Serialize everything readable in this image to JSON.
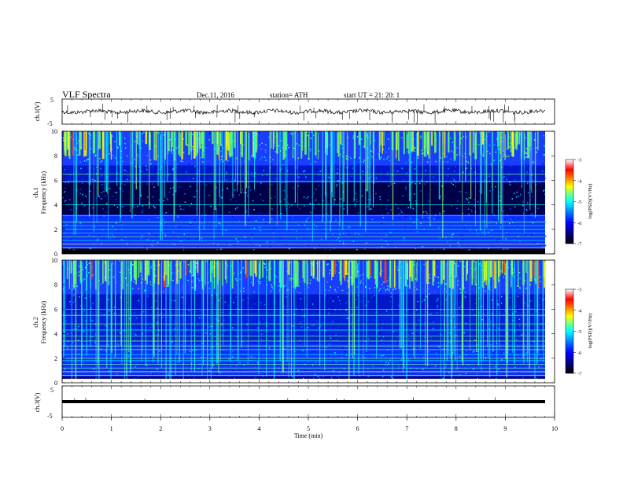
{
  "header": {
    "title": "VLF  Spectra",
    "date": "Dec.11, 2016",
    "station": "station= ATH",
    "start_ut": "start  UT  =    21: 20: 1"
  },
  "colors": {
    "spectrum_scale": [
      "#000000",
      "#00007f",
      "#0000ff",
      "#0080ff",
      "#00ffff",
      "#80ff80",
      "#ffff00",
      "#ff8000",
      "#ff0000",
      "#ffffff"
    ]
  },
  "chart_data": [
    {
      "type": "line",
      "name": "ch1-waveform",
      "ylabel": "ch.1(V)",
      "ylim": [
        -5,
        5
      ],
      "yticks": [
        "5",
        "-5"
      ],
      "xlim": [
        0,
        10
      ]
    },
    {
      "type": "heatmap",
      "name": "ch1-spectrogram",
      "ylabel_top": "ch.1",
      "ylabel": "Frequency  (kHz)",
      "ylim": [
        0,
        10
      ],
      "yticks": [
        "0",
        "2",
        "4",
        "6",
        "8",
        "10"
      ],
      "xlim": [
        0,
        10
      ],
      "colorbar": {
        "label": "log(PSD)(V²/Hz)",
        "range": [
          -7,
          -3
        ],
        "ticks": [
          "-3",
          "-4",
          "-5",
          "-6",
          "-7"
        ]
      }
    },
    {
      "type": "heatmap",
      "name": "ch2-spectrogram",
      "ylabel_top": "ch.2",
      "ylabel": "Frequency  (kHz)",
      "ylim": [
        0,
        10
      ],
      "yticks": [
        "0",
        "2",
        "4",
        "6",
        "8",
        "10"
      ],
      "xlim": [
        0,
        10
      ],
      "colorbar": {
        "label": "log(PSD)(V²/Hz)",
        "range": [
          -7,
          -3
        ],
        "ticks": [
          "-3",
          "-4",
          "-5",
          "-6",
          "-7"
        ]
      }
    },
    {
      "type": "line",
      "name": "ch3-waveform",
      "ylabel": "ch.3(V)",
      "ylim": [
        -5,
        5
      ],
      "yticks": [
        "5",
        "-5"
      ],
      "xlim": [
        0,
        10
      ],
      "xlabel": "Time  (min)",
      "xticks": [
        "0",
        "1",
        "2",
        "3",
        "4",
        "5",
        "6",
        "7",
        "8",
        "9",
        "10"
      ]
    }
  ]
}
